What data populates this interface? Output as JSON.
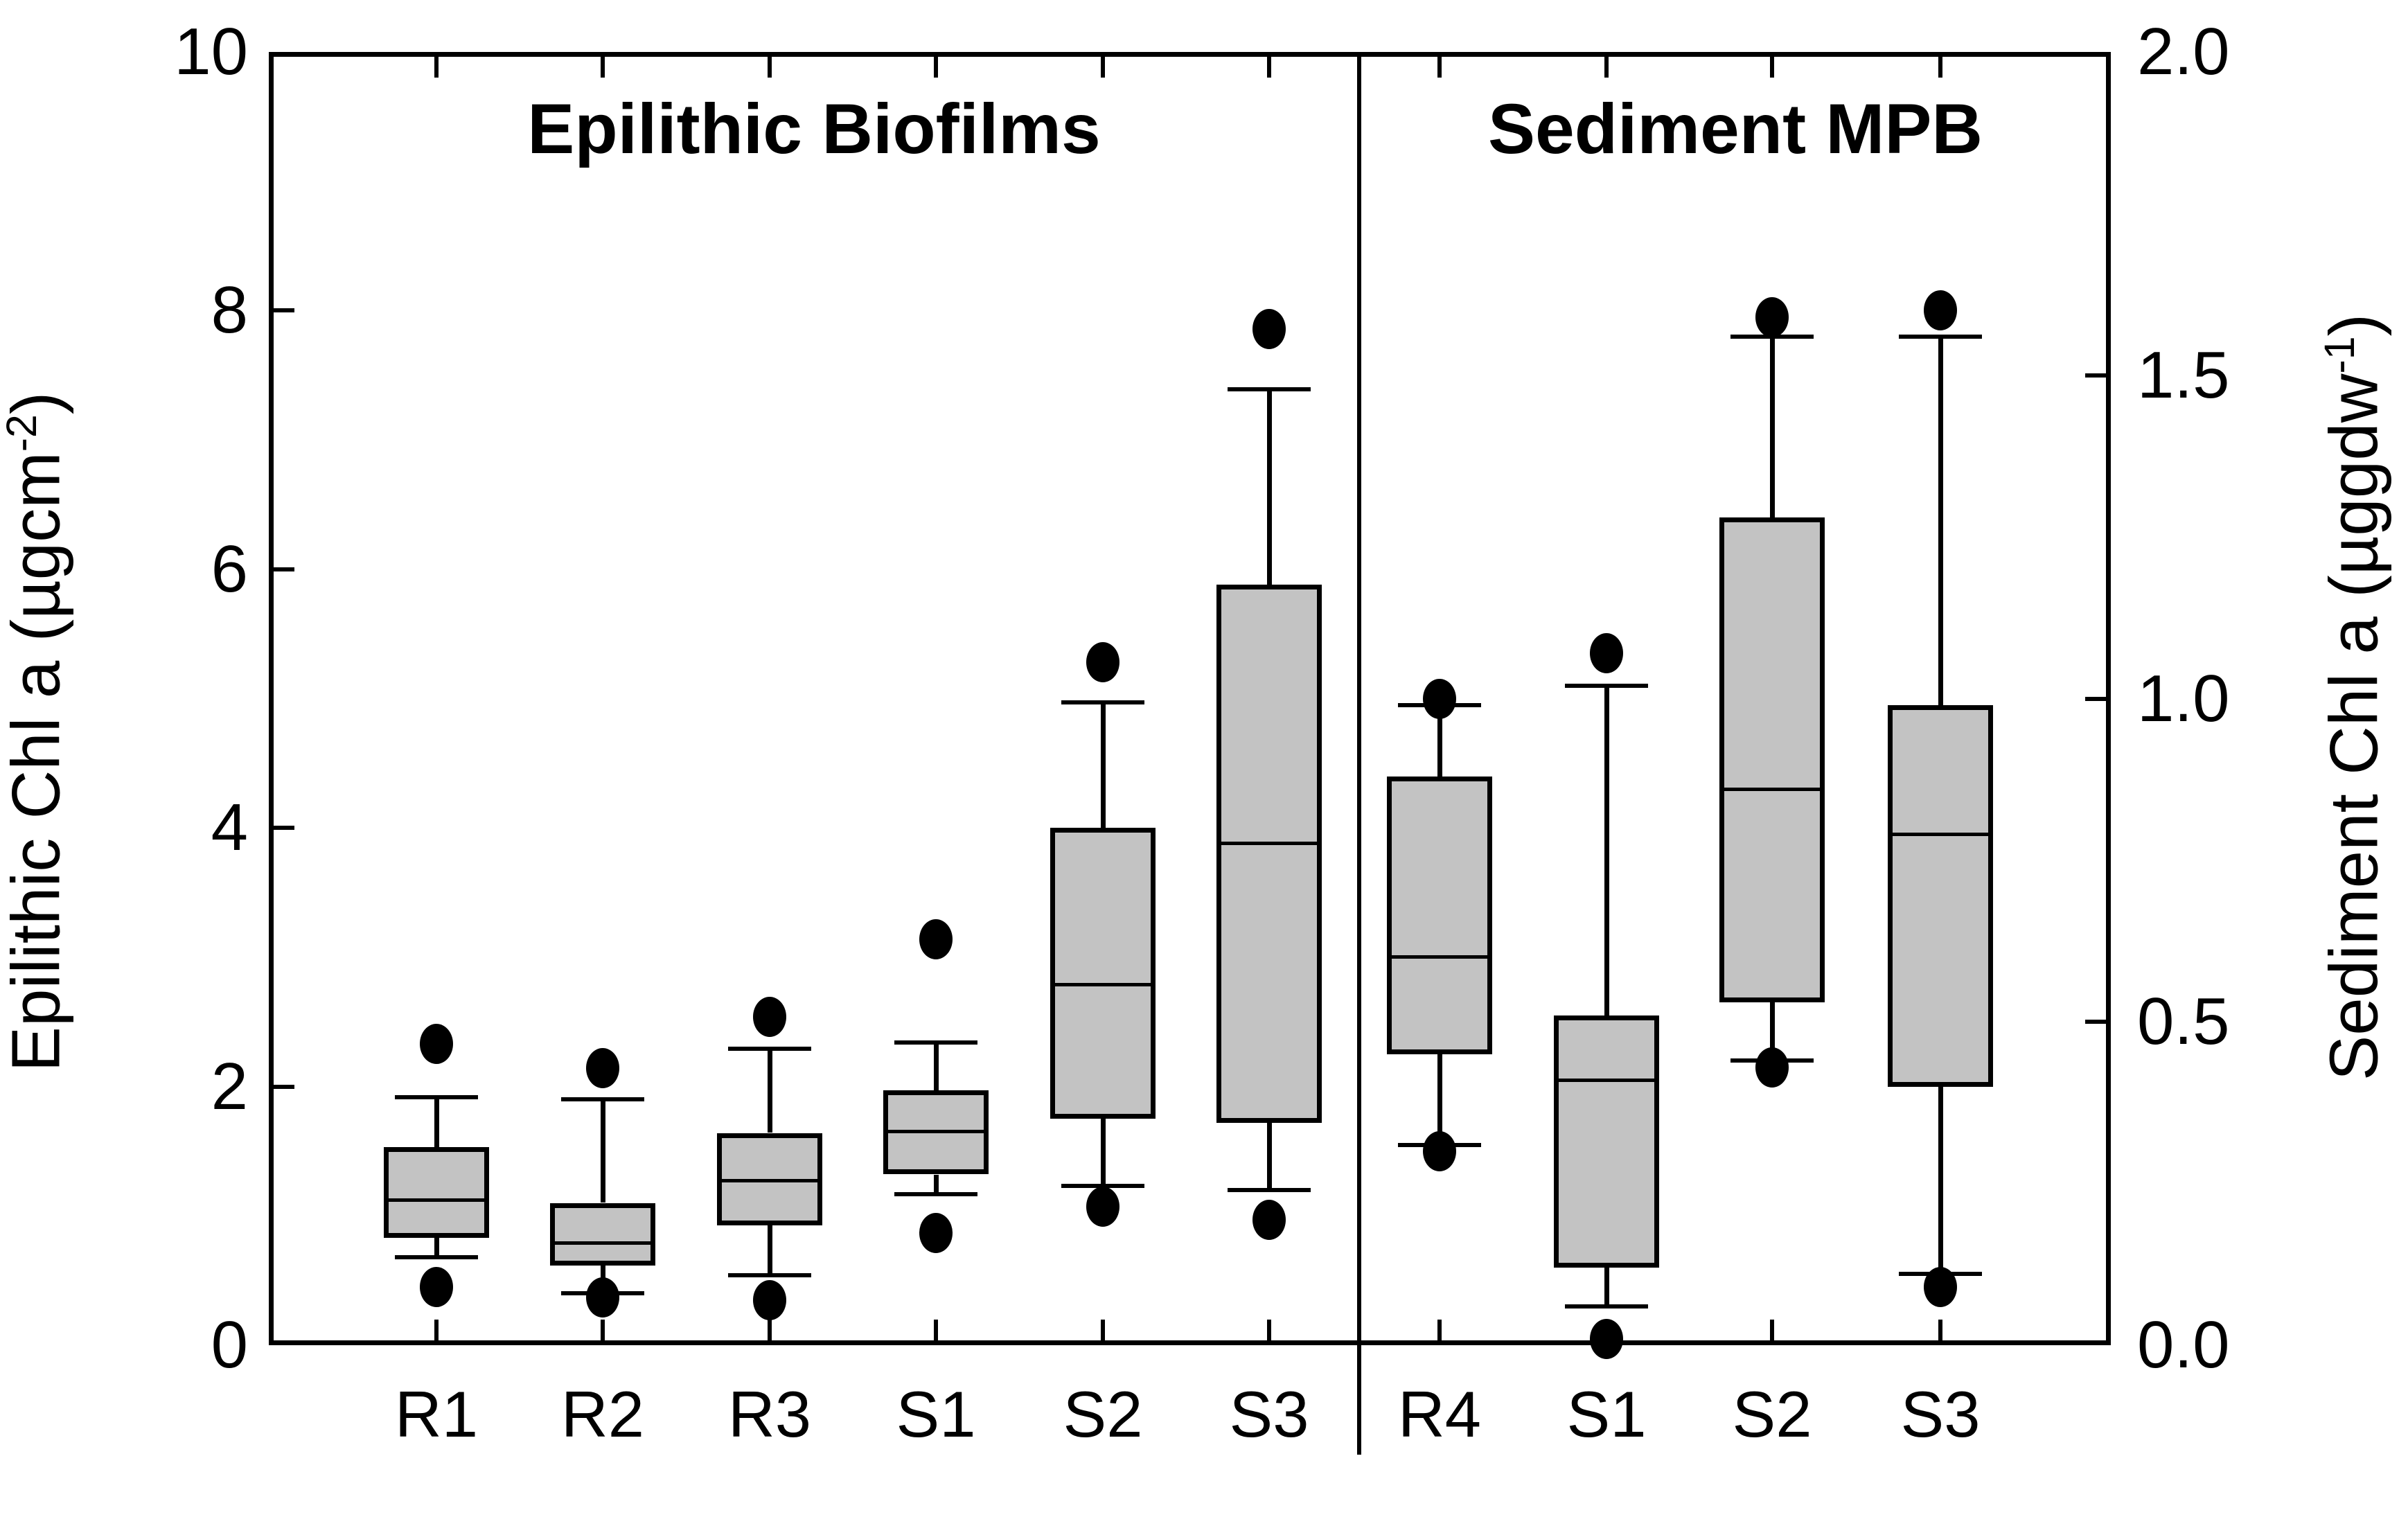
{
  "chart_data": {
    "type": "boxplot",
    "title": "",
    "grid": false,
    "legend": false,
    "style": {
      "box_fill": "#c3c3c3",
      "line_color": "#000000",
      "background": "#ffffff"
    },
    "left_axis": {
      "label_pre": "Epilithic Chl a (µgcm",
      "label_sup": "-2",
      "label_post": ")",
      "range": [
        0,
        10
      ],
      "ticks": [
        {
          "v": 10,
          "t": "10"
        },
        {
          "v": 8,
          "t": "8"
        },
        {
          "v": 6,
          "t": "6"
        },
        {
          "v": 4,
          "t": "4"
        },
        {
          "v": 2,
          "t": "2"
        },
        {
          "v": 0,
          "t": "0"
        }
      ]
    },
    "right_axis": {
      "label_pre": "Sediment Chl a (µggdw",
      "label_sup": "-1",
      "label_post": ")",
      "range": [
        0,
        2
      ],
      "ticks": [
        {
          "v": 2.0,
          "t": "2.0"
        },
        {
          "v": 1.5,
          "t": "1.5"
        },
        {
          "v": 1.0,
          "t": "1.0"
        },
        {
          "v": 0.5,
          "t": "0.5"
        },
        {
          "v": 0.0,
          "t": "0.0"
        }
      ]
    },
    "panels": [
      {
        "title": "Epilithic Biofilms",
        "value_axis": "left_axis",
        "boxes": [
          {
            "category": "R1",
            "whisker_low": 0.68,
            "q1": 0.83,
            "median": 1.12,
            "q3": 1.53,
            "whisker_high": 1.92,
            "outliers": [
              0.45,
              2.33
            ]
          },
          {
            "category": "R2",
            "whisker_low": 0.4,
            "q1": 0.62,
            "median": 0.79,
            "q3": 1.1,
            "whisker_high": 1.9,
            "outliers": [
              0.37,
              2.14
            ]
          },
          {
            "category": "R3",
            "whisker_low": 0.54,
            "q1": 0.93,
            "median": 1.27,
            "q3": 1.64,
            "whisker_high": 2.29,
            "outliers": [
              0.35,
              2.54
            ]
          },
          {
            "category": "S1",
            "whisker_low": 1.17,
            "q1": 1.32,
            "median": 1.65,
            "q3": 1.97,
            "whisker_high": 2.34,
            "outliers": [
              0.87,
              3.14
            ]
          },
          {
            "category": "S2",
            "whisker_low": 1.23,
            "q1": 1.75,
            "median": 2.79,
            "q3": 4.0,
            "whisker_high": 4.97,
            "outliers": [
              1.07,
              5.28
            ]
          },
          {
            "category": "S3",
            "whisker_low": 1.2,
            "q1": 1.72,
            "median": 3.88,
            "q3": 5.88,
            "whisker_high": 7.39,
            "outliers": [
              0.97,
              7.86
            ]
          }
        ]
      },
      {
        "title": "Sediment MPB",
        "value_axis": "right_axis",
        "boxes": [
          {
            "category": "R4",
            "whisker_low": 0.31,
            "q1": 0.45,
            "median": 0.6,
            "q3": 0.88,
            "whisker_high": 0.99,
            "outliers": [
              0.3,
              1.0
            ]
          },
          {
            "category": "S1",
            "whisker_low": 0.06,
            "q1": 0.12,
            "median": 0.41,
            "q3": 0.51,
            "whisker_high": 1.02,
            "outliers": [
              0.01,
              1.07
            ]
          },
          {
            "category": "S2",
            "whisker_low": 0.44,
            "q1": 0.53,
            "median": 0.86,
            "q3": 1.28,
            "whisker_high": 1.56,
            "outliers": [
              0.43,
              1.59
            ]
          },
          {
            "category": "S3",
            "whisker_low": 0.11,
            "q1": 0.4,
            "median": 0.79,
            "q3": 0.99,
            "whisker_high": 1.56,
            "outliers": [
              0.09,
              1.6
            ]
          }
        ]
      }
    ]
  }
}
